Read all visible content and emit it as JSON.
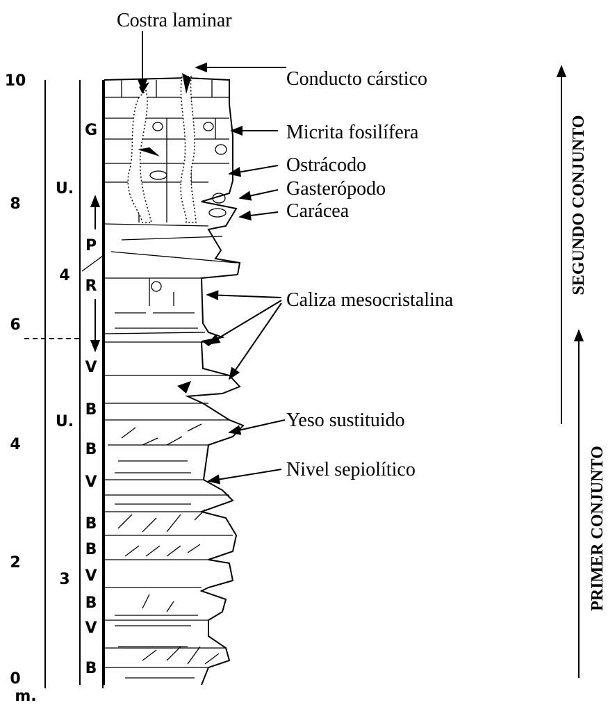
{
  "scale": {
    "ticks": [
      10,
      8,
      6,
      4,
      2,
      0
    ],
    "unit": "m."
  },
  "units": [
    {
      "label": "U.",
      "number": "4"
    },
    {
      "label": "U.",
      "number": "3"
    }
  ],
  "facies": [
    "G",
    "P",
    "R",
    "V",
    "B",
    "B",
    "V",
    "B",
    "B",
    "V",
    "B",
    "V",
    "B"
  ],
  "annotations": [
    "Costra laminar",
    "Conducto cárstico",
    "Micrita fosilífera",
    "Ostrácodo",
    "Gasterópodo",
    "Carácea",
    "Caliza mesocristalina",
    "Yeso sustituido",
    "Nivel sepiolítico"
  ],
  "sets": [
    "SEGUNDO CONJUNTO",
    "PRIMER CONJUNTO"
  ]
}
